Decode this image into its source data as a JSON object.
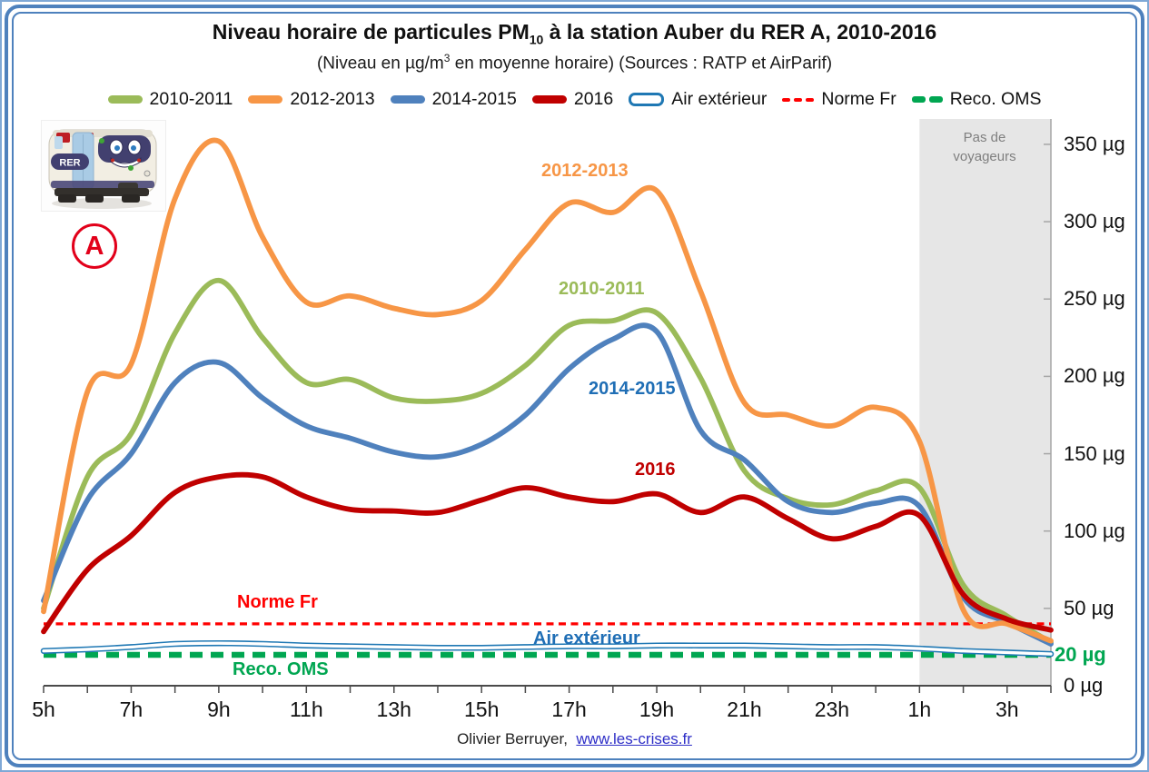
{
  "header": {
    "title_prefix": "Niveau horaire de particules PM",
    "title_sub": "10",
    "title_suffix": " à la station Auber du RER A, 2010-2016",
    "subtitle_prefix": "(Niveau en µg/m",
    "subtitle_sup": "3",
    "subtitle_suffix": " en moyenne horaire) (Sources : RATP et AirParif)"
  },
  "legend": {
    "items": [
      {
        "label": "2010-2011",
        "marker": "bar",
        "color": "#9BBB59"
      },
      {
        "label": "2012-2013",
        "marker": "bar",
        "color": "#F79646"
      },
      {
        "label": "2014-2015",
        "marker": "bar",
        "color": "#4F81BD"
      },
      {
        "label": "2016",
        "marker": "bar",
        "color": "#C00000"
      },
      {
        "label": "Air extérieur",
        "marker": "pill",
        "color": "#1F78B4"
      },
      {
        "label": "Norme Fr",
        "marker": "dashes-small",
        "color": "#FF0000"
      },
      {
        "label": "Reco. OMS",
        "marker": "dashes-large",
        "color": "#00A651"
      }
    ]
  },
  "badges": {
    "train_label": "RER",
    "line_letter": "A",
    "line_color": "#E2001A"
  },
  "annotations": {
    "label_2012_2013": "2012-2013",
    "label_2010_2011": "2010-2011",
    "label_2014_2015": "2014-2015",
    "label_2016": "2016",
    "label_norme": "Norme Fr",
    "label_air": "Air extérieur",
    "label_oms": "Reco. OMS",
    "no_passengers_line1": "Pas de",
    "no_passengers_line2": "voyageurs"
  },
  "footer": {
    "credit": "Olivier Berruyer,",
    "link": "www.les-crises.fr"
  },
  "chart_data": {
    "type": "line",
    "title": "Niveau horaire de particules PM10 à la station Auber du RER A, 2010-2016",
    "subtitle": "Niveau en µg/m3 en moyenne horaire — Sources : RATP et AirParif",
    "x_unit": "heure",
    "categories": [
      "5h",
      "6h",
      "7h",
      "8h",
      "9h",
      "10h",
      "11h",
      "12h",
      "13h",
      "14h",
      "15h",
      "16h",
      "17h",
      "18h",
      "19h",
      "20h",
      "21h",
      "22h",
      "23h",
      "0h",
      "1h",
      "2h",
      "3h",
      "4h"
    ],
    "x_tick_labels": [
      "5h",
      "7h",
      "9h",
      "11h",
      "13h",
      "15h",
      "17h",
      "19h",
      "21h",
      "23h",
      "1h",
      "3h"
    ],
    "ylim": [
      0,
      368
    ],
    "y_ticks": [
      {
        "value": 350,
        "label": "350 µg"
      },
      {
        "value": 300,
        "label": "300 µg"
      },
      {
        "value": 250,
        "label": "250 µg"
      },
      {
        "value": 200,
        "label": "200 µg"
      },
      {
        "value": 150,
        "label": "150 µg"
      },
      {
        "value": 100,
        "label": "100 µg"
      },
      {
        "value": 50,
        "label": "50 µg"
      },
      {
        "value": 20,
        "label": "20 µg",
        "highlight_color": "#00A651"
      },
      {
        "value": 0,
        "label": "0 µg"
      }
    ],
    "series": [
      {
        "name": "2010-2011",
        "color": "#9BBB59",
        "label_color": "#9BBB59",
        "style": "solid",
        "values": [
          50,
          135,
          163,
          228,
          262,
          225,
          196,
          198,
          186,
          184,
          189,
          207,
          233,
          236,
          241,
          199,
          139,
          121,
          117,
          126,
          128,
          65,
          45,
          28
        ]
      },
      {
        "name": "2012-2013",
        "color": "#F79646",
        "label_color": "#F79646",
        "style": "solid",
        "values": [
          48,
          190,
          208,
          315,
          352,
          290,
          248,
          252,
          244,
          240,
          249,
          282,
          312,
          306,
          320,
          255,
          183,
          175,
          168,
          180,
          158,
          49,
          40,
          29
        ]
      },
      {
        "name": "2014-2015",
        "color": "#4F81BD",
        "label_color": "#1F6EB5",
        "style": "solid",
        "values": [
          55,
          120,
          150,
          196,
          209,
          186,
          168,
          160,
          151,
          148,
          156,
          175,
          205,
          224,
          229,
          165,
          146,
          119,
          112,
          118,
          116,
          57,
          41,
          27
        ]
      },
      {
        "name": "2016",
        "color": "#C00000",
        "label_color": "#C00000",
        "style": "solid",
        "values": [
          35,
          75,
          97,
          125,
          135,
          135,
          122,
          114,
          113,
          112,
          120,
          128,
          122,
          119,
          124,
          112,
          122,
          108,
          95,
          103,
          110,
          59,
          43,
          36
        ]
      },
      {
        "name": "Air extérieur",
        "color": "#1F78B4",
        "label_color": "#1F6EB5",
        "style": "double",
        "values": [
          22.5,
          23.5,
          25,
          27,
          27.5,
          27,
          26,
          25.5,
          25,
          24.5,
          24.5,
          25,
          25.5,
          25.5,
          26,
          26,
          26,
          25.5,
          25,
          25,
          24,
          22.5,
          21.5,
          20.5
        ]
      }
    ],
    "reference_lines": [
      {
        "name": "Norme Fr",
        "value": 40,
        "color": "#FF0000",
        "style": "dashed-thin"
      },
      {
        "name": "Reco. OMS",
        "value": 20,
        "color": "#00A651",
        "style": "dashed-thick"
      }
    ],
    "shaded_region": {
      "label": "Pas de voyageurs",
      "from": "1h",
      "to": "4h",
      "color": "#E6E6E6"
    },
    "legend_position": "top",
    "grid": false
  }
}
